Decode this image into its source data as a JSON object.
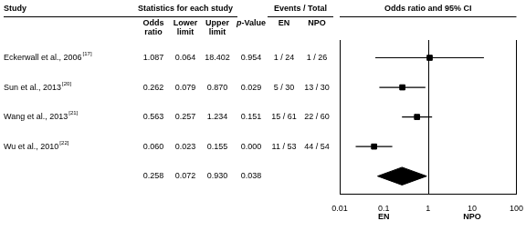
{
  "chart_data": {
    "type": "forest",
    "log": "x",
    "xlim": [
      0.01,
      100
    ],
    "xticks": [
      0.01,
      0.1,
      1,
      10,
      100
    ],
    "grid": false,
    "color": "#000000",
    "reference_line": 1,
    "headers": [
      "Study",
      "Statistics for each study",
      "Events / Total",
      "Odds ratio and 95% CI"
    ],
    "columns": [
      "Odds ratio",
      "Lower limit",
      "Upper limit",
      "p-Value",
      "EN",
      "NPO"
    ],
    "studies": [
      {
        "label": "Eckerwall et al., 2006",
        "superscript": "[17]",
        "or": 1.087,
        "lower": 0.064,
        "upper": 18.402,
        "value_labels": [
          "1.087",
          "0.064",
          "18.402"
        ],
        "p_value": "0.954",
        "en": "1 / 24",
        "npo": "1 / 26"
      },
      {
        "label": "Sun et al., 2013",
        "superscript": "[20]",
        "or": 0.262,
        "lower": 0.079,
        "upper": 0.87,
        "value_labels": [
          "0.262",
          "0.079",
          "0.870"
        ],
        "p_value": "0.029",
        "en": "5 / 30",
        "npo": "13 / 30"
      },
      {
        "label": "Wang et al., 2013",
        "superscript": "[21]",
        "or": 0.563,
        "lower": 0.257,
        "upper": 1.234,
        "value_labels": [
          "0.563",
          "0.257",
          "1.234"
        ],
        "p_value": "0.151",
        "en": "15 / 61",
        "npo": "22 / 60"
      },
      {
        "label": "Wu et al., 2010",
        "superscript": "[22]",
        "or": 0.06,
        "lower": 0.023,
        "upper": 0.155,
        "value_labels": [
          "0.060",
          "0.023",
          "0.155"
        ],
        "p_value": "0.000",
        "en": "11 / 53",
        "npo": "44 / 54"
      }
    ],
    "overall": {
      "or": 0.258,
      "lower": 0.072,
      "upper": 0.93,
      "value_labels": [
        "0.258",
        "0.072",
        "0.930"
      ],
      "p_value": "0.038"
    },
    "annotations": [
      "EN",
      "NPO"
    ]
  }
}
